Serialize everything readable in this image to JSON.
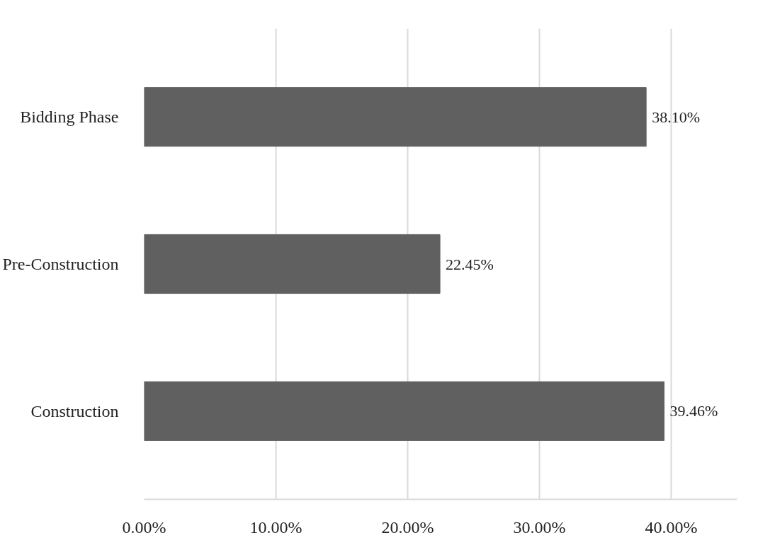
{
  "chart_data": {
    "type": "bar",
    "orientation": "horizontal",
    "categories": [
      "Bidding Phase",
      "Pre-Construction",
      "Construction"
    ],
    "values": [
      38.1,
      22.45,
      39.46
    ],
    "value_labels": [
      "38.10%",
      "22.45%",
      "39.46%"
    ],
    "color": "#606060",
    "xlim": [
      0,
      45
    ],
    "xticks": [
      {
        "value": 0,
        "label": "0.00%"
      },
      {
        "value": 10,
        "label": "10.00%"
      },
      {
        "value": 20,
        "label": "20.00%"
      },
      {
        "value": 30,
        "label": "30.00%"
      },
      {
        "value": 40,
        "label": "40.00%"
      }
    ],
    "grid": "x"
  }
}
